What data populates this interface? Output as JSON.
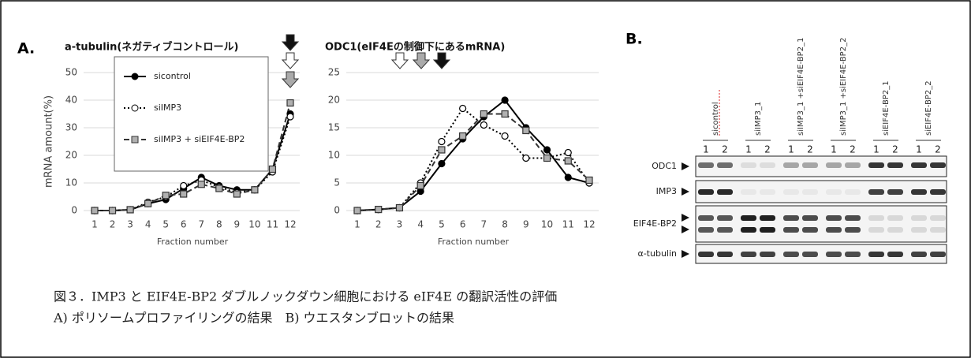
{
  "panels": {
    "a": "A.",
    "b": "B."
  },
  "chart_data": [
    {
      "type": "line",
      "title": "a-tubulin(ネガティブコントロール)",
      "y_label": "mRNA amount(%)",
      "x_label": "Fraction number",
      "categories": [
        "1",
        "2",
        "3",
        "4",
        "5",
        "6",
        "7",
        "8",
        "9",
        "10",
        "11",
        "12"
      ],
      "ylim": [
        0,
        50
      ],
      "yticks": [
        0,
        10,
        20,
        30,
        40,
        50
      ],
      "grid": true,
      "legend": "upper left",
      "series": [
        {
          "name": "sicontrol",
          "color": "#000000",
          "marker": "circle",
          "marker_fill": "#000000",
          "line_style": "solid",
          "values": [
            0,
            0,
            0.3,
            2.5,
            4,
            8,
            12,
            9,
            7.5,
            7.5,
            15,
            35
          ]
        },
        {
          "name": "siIMP3",
          "color": "#000000",
          "marker": "circle",
          "marker_fill": "#ffffff",
          "line_style": "dotted",
          "values": [
            0,
            0,
            0.3,
            3,
            5,
            9,
            11,
            8.5,
            6.5,
            7.5,
            14,
            34
          ]
        },
        {
          "name": "siIMP3 + siEIF4E-BP2",
          "color": "#333333",
          "marker": "square",
          "marker_fill": "#b0b0b0",
          "line_style": "dashed",
          "values": [
            0,
            0,
            0.3,
            2.5,
            5.5,
            6,
            9.5,
            8,
            6,
            7.5,
            15,
            39
          ]
        }
      ]
    },
    {
      "type": "line",
      "title": "ODC1(eIF4Eの制御下にあるmRNA)",
      "x_label": "Fraction number",
      "categories": [
        "1",
        "2",
        "3",
        "4",
        "5",
        "6",
        "7",
        "8",
        "9",
        "10",
        "11",
        "12"
      ],
      "ylim": [
        0,
        25
      ],
      "yticks": [
        0,
        5,
        10,
        15,
        20,
        25
      ],
      "grid": true,
      "series": [
        {
          "color": "#000000",
          "marker": "circle",
          "marker_fill": "#000000",
          "line_style": "solid",
          "values": [
            0,
            0.2,
            0.5,
            3.5,
            8.5,
            13,
            17,
            20,
            15,
            11,
            6,
            5
          ]
        },
        {
          "color": "#000000",
          "marker": "circle",
          "marker_fill": "#ffffff",
          "line_style": "dotted",
          "values": [
            0,
            0.2,
            0.5,
            5,
            12.5,
            18.5,
            15.5,
            13.5,
            9.5,
            9.5,
            10.5,
            5
          ]
        },
        {
          "color": "#333333",
          "marker": "square",
          "marker_fill": "#b0b0b0",
          "line_style": "dashed",
          "values": [
            0,
            0.2,
            0.5,
            4.5,
            11,
            13.5,
            17.5,
            17.5,
            14.5,
            9.5,
            9,
            5.5
          ]
        }
      ]
    }
  ],
  "blot": {
    "groups": [
      "sicontrol",
      "siIMP3_1",
      "siIMP3_1 +siEIF4E-BP2_1",
      "siIMP3_1 +siEIF4E-BP2_2",
      "siEIF4E-BP2_1",
      "siEIF4E-BP2_2"
    ],
    "lanes": [
      "1",
      "2"
    ],
    "rows": [
      "ODC1",
      "IMP3",
      "EIF4E-BP2",
      "α-tubulin"
    ]
  },
  "caption": [
    "図３．IMP3 と EIF4E-BP2 ダブルノックダウン細胞における eIF4E の翻訳活性の評価",
    "A)  ポリソームプロファイリングの結果　B) ウエスタンブロットの結果"
  ]
}
